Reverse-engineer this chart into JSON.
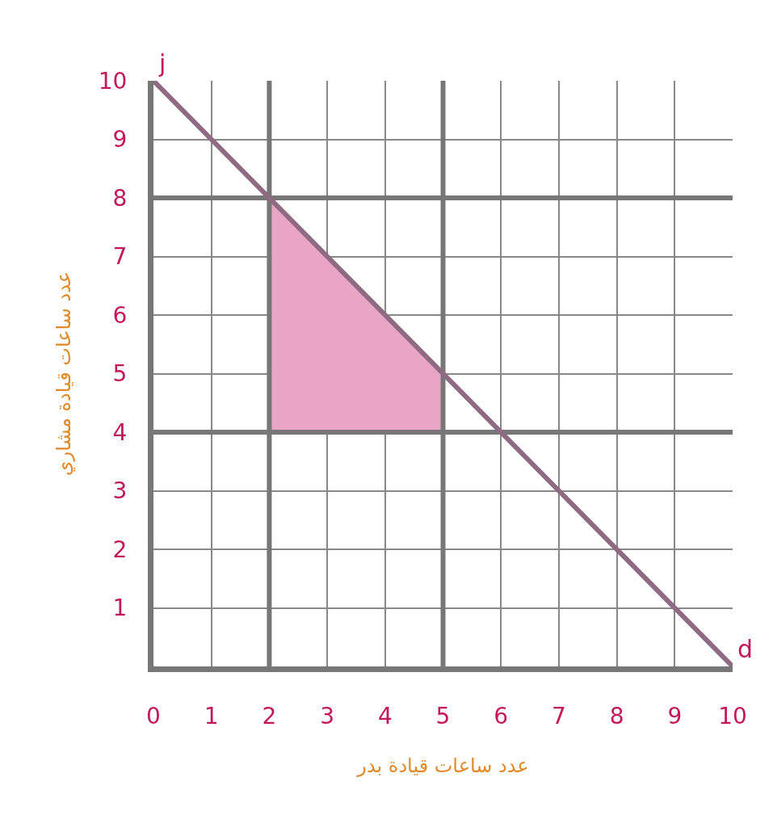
{
  "chart_data": {
    "type": "line",
    "xlabel": "عدد ساعات قيادة بدر",
    "ylabel": "عدد ساعات قيادة مشاري",
    "xlim": [
      0,
      10
    ],
    "ylim": [
      0,
      10
    ],
    "xticks": [
      0,
      1,
      2,
      3,
      4,
      5,
      6,
      7,
      8,
      9,
      10
    ],
    "yticks": [
      1,
      2,
      3,
      4,
      5,
      6,
      7,
      8,
      9,
      10
    ],
    "grid": true,
    "series": [
      {
        "type": "area",
        "color": "#e9a6c4",
        "x": [
          2,
          2,
          5,
          5
        ],
        "values": [
          4,
          8,
          5,
          4
        ]
      },
      {
        "color": "#777777",
        "x": [
          2,
          2
        ],
        "values": [
          0,
          10
        ]
      },
      {
        "color": "#777777",
        "x": [
          5,
          5
        ],
        "values": [
          0,
          10
        ]
      },
      {
        "color": "#777777",
        "x": [
          0,
          10
        ],
        "values": [
          4,
          4
        ]
      },
      {
        "color": "#777777",
        "x": [
          0,
          10
        ],
        "values": [
          8,
          8
        ]
      },
      {
        "color": "#8e6b82",
        "x": [
          0,
          10
        ],
        "values": [
          10,
          0
        ]
      }
    ],
    "annotations": [
      {
        "text": "j",
        "x": 0,
        "y": 10
      },
      {
        "text": "d",
        "x": 10,
        "y": 0
      }
    ]
  }
}
